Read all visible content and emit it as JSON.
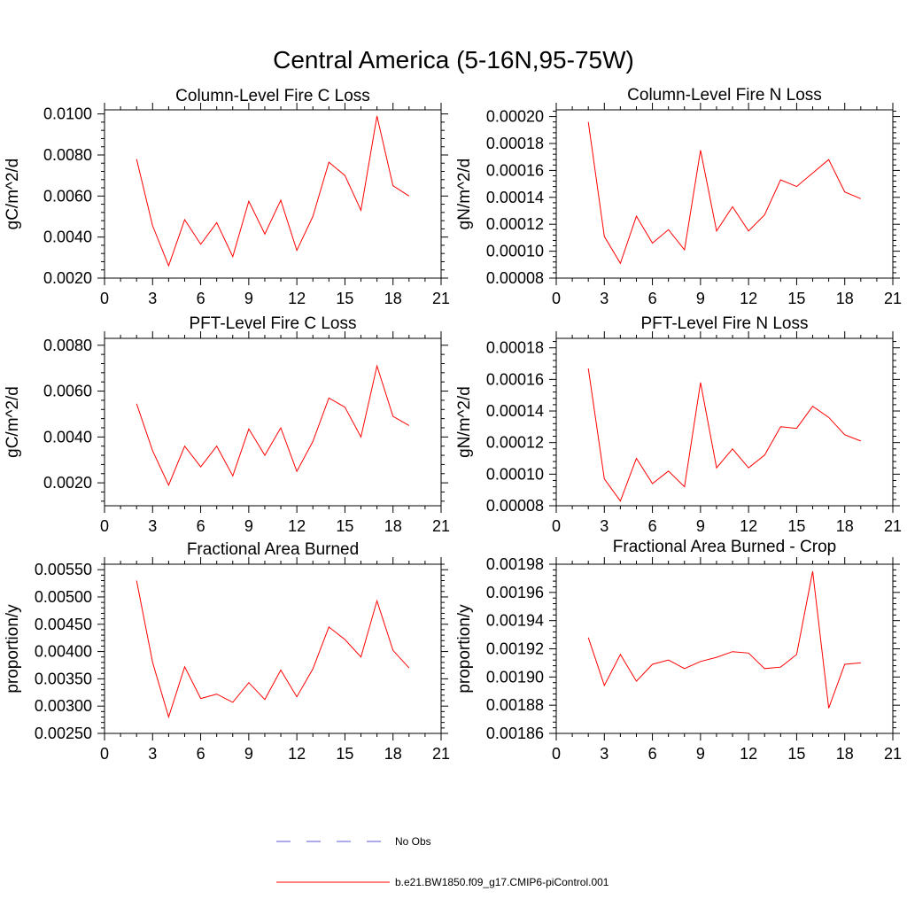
{
  "page": {
    "title": "Central America (5-16N,95-75W)"
  },
  "legend": [
    {
      "label": "No Obs",
      "color": "#5a5ad0",
      "style": "dashed"
    },
    {
      "label": "b.e21.BW1850.f09_g17.CMIP6-piControl.001",
      "color": "#ff0000",
      "style": "solid"
    }
  ],
  "chart_data": [
    {
      "type": "line",
      "title": "Column-Level Fire C Loss",
      "xlabel": "",
      "ylabel": "gC/m^2/d",
      "xlim": [
        0,
        21
      ],
      "ylim": [
        0.002,
        0.0102
      ],
      "xticks": [
        "0",
        "3",
        "6",
        "9",
        "12",
        "15",
        "18",
        "21"
      ],
      "yticks": [
        "0.0020",
        "0.0040",
        "0.0060",
        "0.0080",
        "0.0100"
      ],
      "x": [
        2,
        3,
        4,
        5,
        6,
        7,
        8,
        9,
        10,
        11,
        12,
        13,
        14,
        15,
        16,
        17,
        18,
        19
      ],
      "series": [
        {
          "name": "b.e21.BW1850.f09_g17.CMIP6-piControl.001",
          "values": [
            0.0078,
            0.00455,
            0.0026,
            0.00485,
            0.00365,
            0.0047,
            0.00305,
            0.00575,
            0.00415,
            0.0058,
            0.00335,
            0.005,
            0.00765,
            0.007,
            0.0053,
            0.0099,
            0.0065,
            0.006
          ]
        }
      ]
    },
    {
      "type": "line",
      "title": "Column-Level Fire N Loss",
      "xlabel": "",
      "ylabel": "gN/m^2/d",
      "xlim": [
        0,
        21
      ],
      "ylim": [
        8e-05,
        0.000205
      ],
      "xticks": [
        "0",
        "3",
        "6",
        "9",
        "12",
        "15",
        "18",
        "21"
      ],
      "yticks": [
        "0.00008",
        "0.00010",
        "0.00012",
        "0.00014",
        "0.00016",
        "0.00018",
        "0.00020"
      ],
      "x": [
        2,
        3,
        4,
        5,
        6,
        7,
        8,
        9,
        10,
        11,
        12,
        13,
        14,
        15,
        16,
        17,
        18,
        19
      ],
      "series": [
        {
          "name": "b.e21.BW1850.f09_g17.CMIP6-piControl.001",
          "values": [
            0.000196,
            0.000111,
            9.1e-05,
            0.000126,
            0.000106,
            0.000116,
            0.000101,
            0.000175,
            0.000115,
            0.000133,
            0.000115,
            0.000127,
            0.000153,
            0.000148,
            0.000158,
            0.000168,
            0.000144,
            0.000139
          ]
        }
      ]
    },
    {
      "type": "line",
      "title": "PFT-Level Fire C Loss",
      "xlabel": "",
      "ylabel": "gC/m^2/d",
      "xlim": [
        0,
        21
      ],
      "ylim": [
        0.001,
        0.0083
      ],
      "xticks": [
        "0",
        "3",
        "6",
        "9",
        "12",
        "15",
        "18",
        "21"
      ],
      "yticks": [
        "0.0020",
        "0.0040",
        "0.0060",
        "0.0080"
      ],
      "x": [
        2,
        3,
        4,
        5,
        6,
        7,
        8,
        9,
        10,
        11,
        12,
        13,
        14,
        15,
        16,
        17,
        18,
        19
      ],
      "series": [
        {
          "name": "b.e21.BW1850.f09_g17.CMIP6-piControl.001",
          "values": [
            0.00545,
            0.0034,
            0.0019,
            0.0036,
            0.0027,
            0.0036,
            0.0023,
            0.00435,
            0.0032,
            0.0044,
            0.0025,
            0.0038,
            0.0057,
            0.0053,
            0.004,
            0.0071,
            0.0049,
            0.0045
          ]
        }
      ]
    },
    {
      "type": "line",
      "title": "PFT-Level Fire N Loss",
      "xlabel": "",
      "ylabel": "gN/m^2/d",
      "xlim": [
        0,
        21
      ],
      "ylim": [
        8e-05,
        0.000186
      ],
      "xticks": [
        "0",
        "3",
        "6",
        "9",
        "12",
        "15",
        "18",
        "21"
      ],
      "yticks": [
        "0.00008",
        "0.00010",
        "0.00012",
        "0.00014",
        "0.00016",
        "0.00018"
      ],
      "x": [
        2,
        3,
        4,
        5,
        6,
        7,
        8,
        9,
        10,
        11,
        12,
        13,
        14,
        15,
        16,
        17,
        18,
        19
      ],
      "series": [
        {
          "name": "b.e21.BW1850.f09_g17.CMIP6-piControl.001",
          "values": [
            0.000167,
            9.7e-05,
            8.3e-05,
            0.00011,
            9.4e-05,
            0.000102,
            9.2e-05,
            0.000158,
            0.000104,
            0.000116,
            0.000104,
            0.000112,
            0.00013,
            0.000129,
            0.000143,
            0.000136,
            0.000125,
            0.000121
          ]
        }
      ]
    },
    {
      "type": "line",
      "title": "Fractional Area Burned",
      "xlabel": "",
      "ylabel": "proportion/y",
      "xlim": [
        0,
        21
      ],
      "ylim": [
        0.0025,
        0.0056
      ],
      "xticks": [
        "0",
        "3",
        "6",
        "9",
        "12",
        "15",
        "18",
        "21"
      ],
      "yticks": [
        "0.00250",
        "0.00300",
        "0.00350",
        "0.00400",
        "0.00450",
        "0.00500",
        "0.00550"
      ],
      "x": [
        2,
        3,
        4,
        5,
        6,
        7,
        8,
        9,
        10,
        11,
        12,
        13,
        14,
        15,
        16,
        17,
        18,
        19
      ],
      "series": [
        {
          "name": "b.e21.BW1850.f09_g17.CMIP6-piControl.001",
          "values": [
            0.0053,
            0.0038,
            0.0028,
            0.00372,
            0.00314,
            0.00322,
            0.00307,
            0.00343,
            0.00312,
            0.00366,
            0.00317,
            0.00368,
            0.00445,
            0.00422,
            0.0039,
            0.00493,
            0.00402,
            0.0037
          ]
        }
      ]
    },
    {
      "type": "line",
      "title": "Fractional Area Burned - Crop",
      "xlabel": "",
      "ylabel": "proportion/y",
      "xlim": [
        0,
        21
      ],
      "ylim": [
        0.00186,
        0.00198
      ],
      "xticks": [
        "0",
        "3",
        "6",
        "9",
        "12",
        "15",
        "18",
        "21"
      ],
      "yticks": [
        "0.00186",
        "0.00188",
        "0.00190",
        "0.00192",
        "0.00194",
        "0.00196",
        "0.00198"
      ],
      "x": [
        2,
        3,
        4,
        5,
        6,
        7,
        8,
        9,
        10,
        11,
        12,
        13,
        14,
        15,
        16,
        17,
        18,
        19
      ],
      "series": [
        {
          "name": "b.e21.BW1850.f09_g17.CMIP6-piControl.001",
          "values": [
            0.001928,
            0.001894,
            0.001916,
            0.001897,
            0.001909,
            0.001912,
            0.001906,
            0.001911,
            0.001914,
            0.001918,
            0.001917,
            0.001906,
            0.001907,
            0.001916,
            0.001975,
            0.001878,
            0.001909,
            0.00191
          ]
        }
      ]
    }
  ]
}
